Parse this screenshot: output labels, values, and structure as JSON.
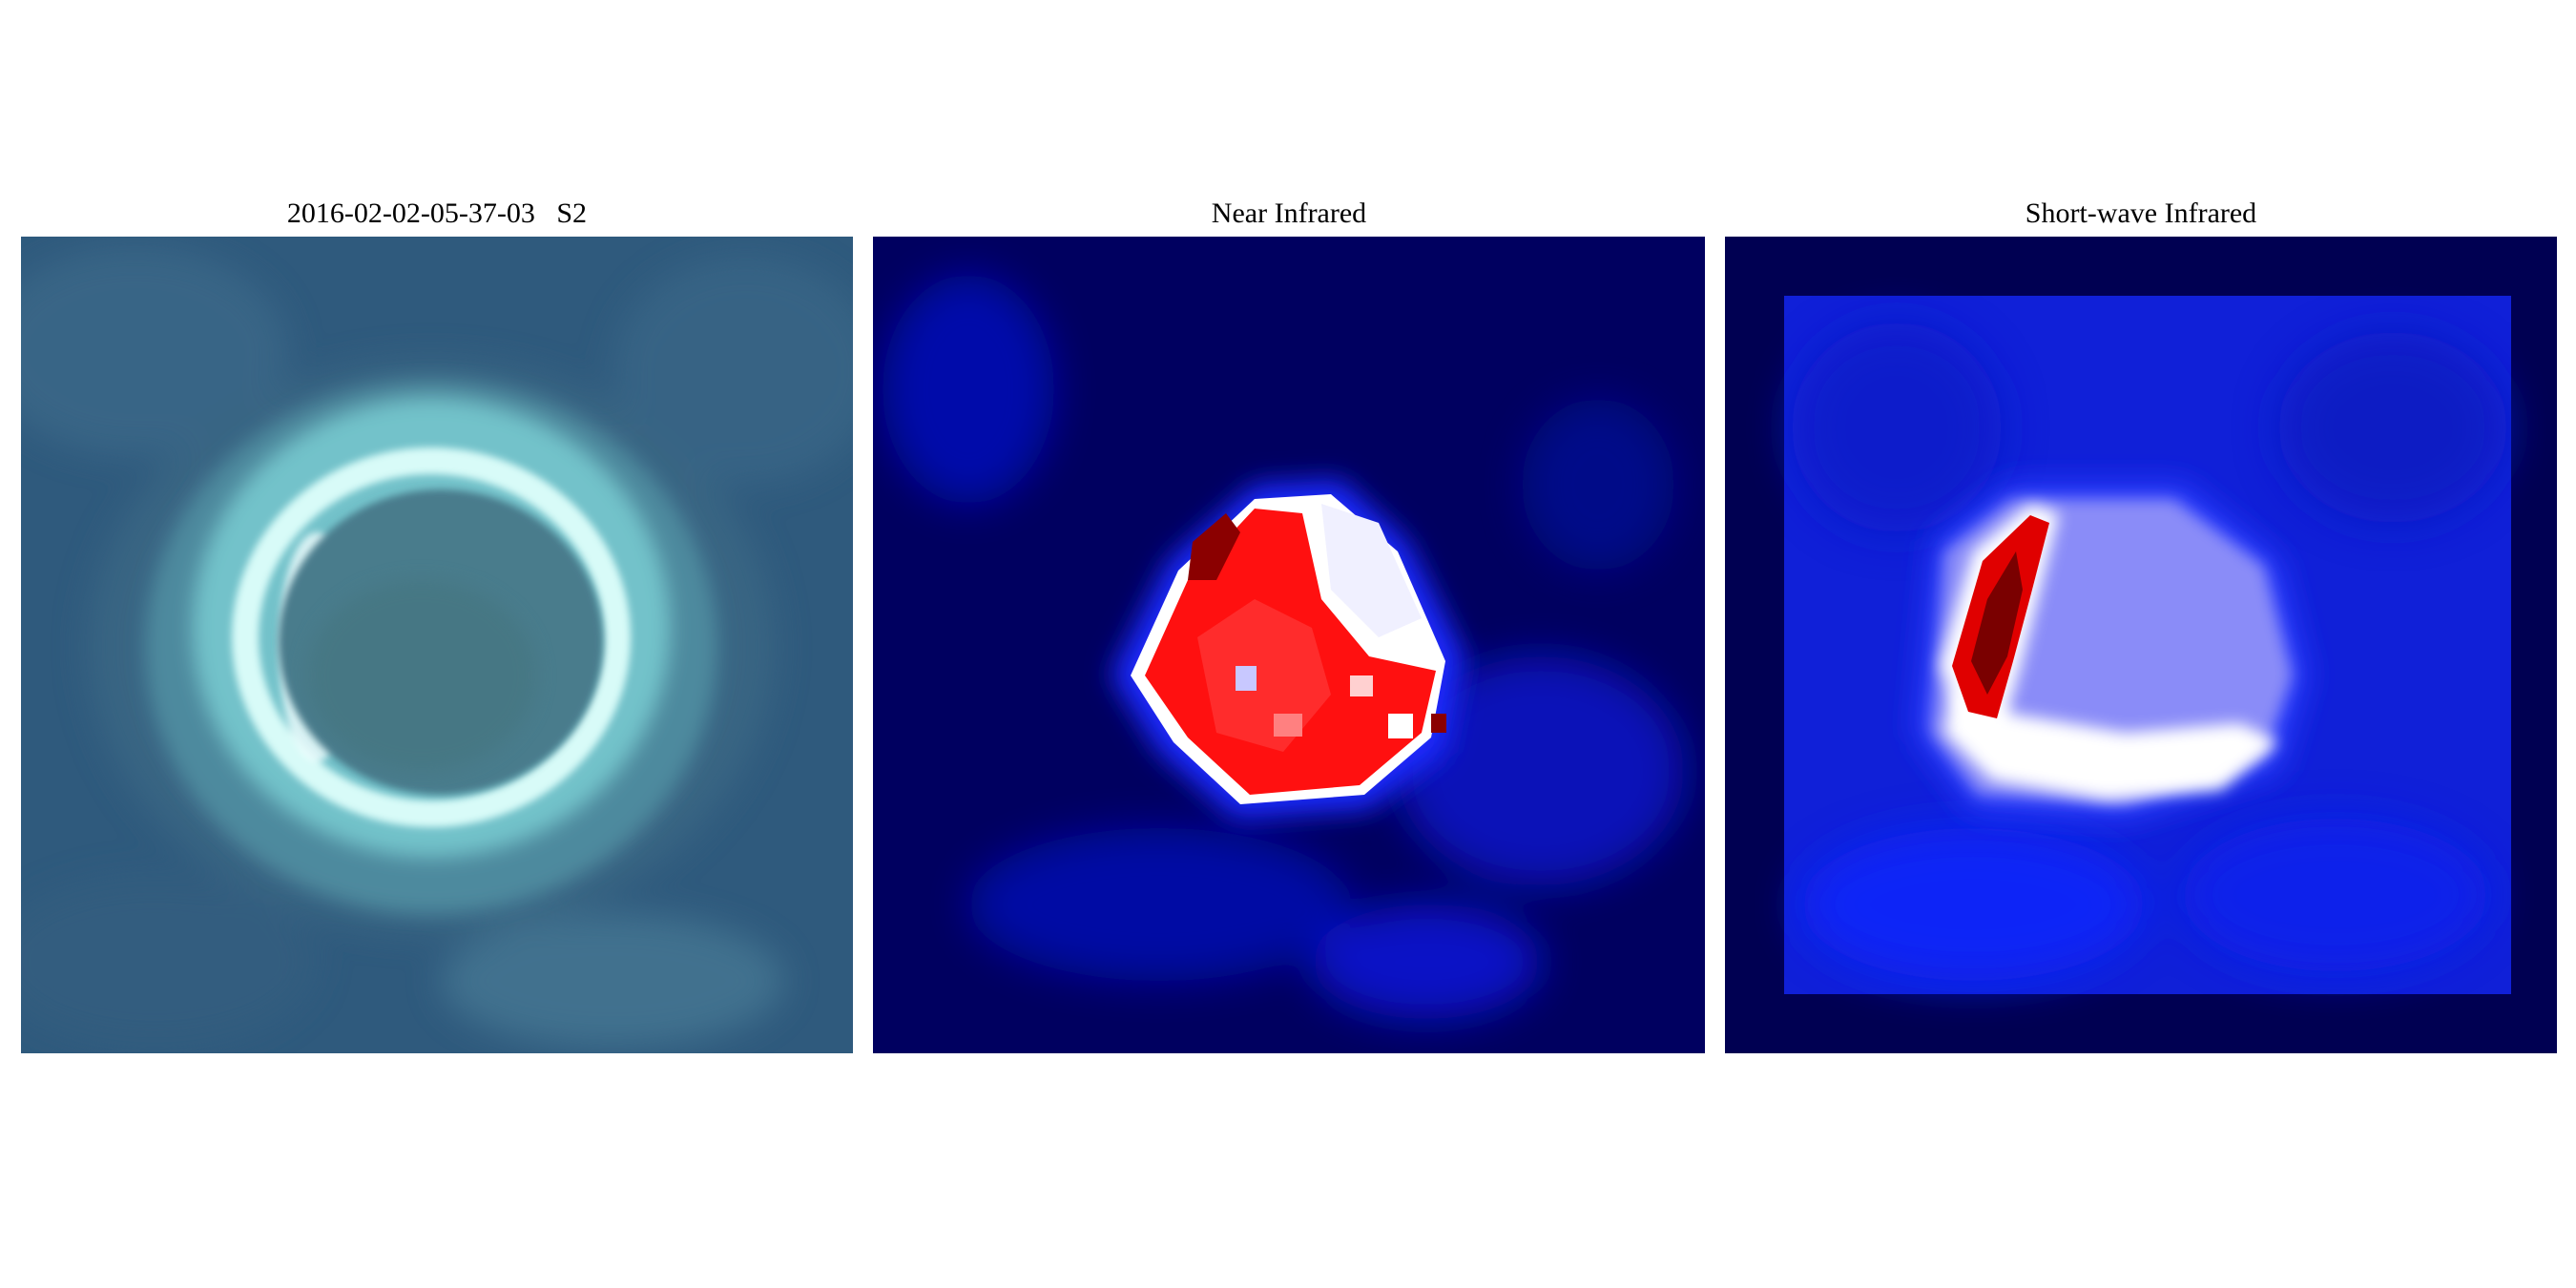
{
  "panels": [
    {
      "title": "2016-02-02-05-37-03   S2",
      "image": "rgb-composite",
      "palette": {
        "background": "#2f5a7d",
        "ring": "#9ff2ee",
        "rim": "#e8ffff",
        "lagoon": "#4c7c8e"
      }
    },
    {
      "title": "Near Infrared",
      "image": "nir-heatmap",
      "palette": {
        "low": "#000060",
        "mid": "#0a12e0",
        "neutral": "#ffffff",
        "high": "#ff0000",
        "max": "#8b0000"
      }
    },
    {
      "title": "Short-wave Infrared",
      "image": "swir-heatmap",
      "palette": {
        "border": "#000052",
        "low": "#1020d8",
        "neutral": "#ffffff",
        "high": "#e00000",
        "max": "#7a0000"
      }
    }
  ]
}
